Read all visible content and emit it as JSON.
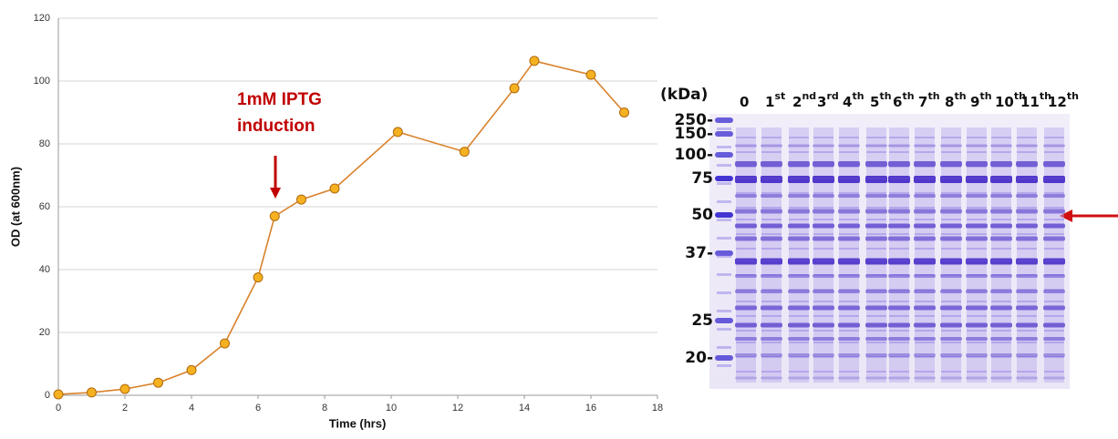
{
  "chart_data": {
    "type": "line",
    "x": [
      0,
      1,
      2,
      3,
      4,
      5,
      6,
      6.5,
      7.3,
      8.3,
      10.2,
      12.2,
      13.7,
      14.3,
      16,
      17
    ],
    "values": [
      0.3,
      0.9,
      2,
      4,
      8,
      16.5,
      37.5,
      57,
      62.3,
      65.8,
      83.8,
      77.5,
      97.7,
      106.4,
      102,
      90
    ],
    "color": "#d9822b",
    "marker_color": "#f5b120",
    "xlabel": "Time (hrs)",
    "ylabel": "OD (at 600nm)",
    "xlim": [
      0,
      18
    ],
    "xticks": [
      0,
      2,
      4,
      6,
      8,
      10,
      12,
      14,
      16,
      18
    ],
    "ylim": [
      0,
      120
    ],
    "yticks": [
      0,
      20,
      40,
      60,
      80,
      100,
      120
    ],
    "grid": true,
    "annotation": [
      "1mM IPTG",
      "induction"
    ]
  },
  "gel": {
    "unit": "(kDa)",
    "markers": [
      "250-",
      "150-",
      "100-",
      "75",
      "50",
      "37-",
      "25",
      "20-"
    ],
    "lanes": [
      {
        "label": "0"
      },
      {
        "label": "1",
        "sup": "st"
      },
      {
        "label": "2",
        "sup": "nd"
      },
      {
        "label": "3",
        "sup": "rd"
      },
      {
        "label": "4",
        "sup": "th"
      },
      {
        "label": "5",
        "sup": "th"
      },
      {
        "label": "6",
        "sup": "th"
      },
      {
        "label": "7",
        "sup": "th"
      },
      {
        "label": "8",
        "sup": "th"
      },
      {
        "label": "9",
        "sup": "th"
      },
      {
        "label": "10",
        "sup": "th"
      },
      {
        "label": "11",
        "sup": "th"
      },
      {
        "label": "12",
        "sup": "th"
      }
    ]
  }
}
